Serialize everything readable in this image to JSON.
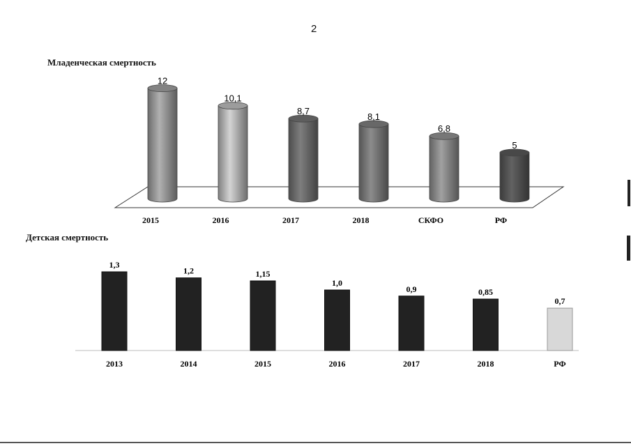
{
  "page": {
    "number": "2"
  },
  "chart_data": [
    {
      "type": "bar",
      "title": "Младенческая смертность",
      "categories": [
        "2015",
        "2016",
        "2017",
        "2018",
        "СКФО",
        "РФ"
      ],
      "values": [
        12,
        10.1,
        8.7,
        8.1,
        6.8,
        5
      ],
      "value_labels": [
        "12",
        "10,1",
        "8,7",
        "8,1",
        "6,8",
        "5"
      ],
      "style": "3d-cylinder",
      "colors": [
        "#9a9a9a",
        "#b8b8b8",
        "#6e6e6e",
        "#7a7a7a",
        "#8c8c8c",
        "#555555"
      ],
      "ylim": [
        0,
        12.5
      ],
      "grid": false,
      "legend": "none"
    },
    {
      "type": "bar",
      "title": "Детская смертность",
      "categories": [
        "2013",
        "2014",
        "2015",
        "2016",
        "2017",
        "2018",
        "РФ"
      ],
      "values": [
        1.3,
        1.2,
        1.15,
        1.0,
        0.9,
        0.85,
        0.7
      ],
      "value_labels": [
        "1,3",
        "1,2",
        "1,15",
        "1,0",
        "0,9",
        "0,85",
        "0,7"
      ],
      "colors": [
        "#222222",
        "#222222",
        "#222222",
        "#222222",
        "#222222",
        "#222222",
        "#d8d8d8"
      ],
      "ylim": [
        0,
        1.4
      ],
      "grid": false,
      "legend": "none"
    }
  ]
}
